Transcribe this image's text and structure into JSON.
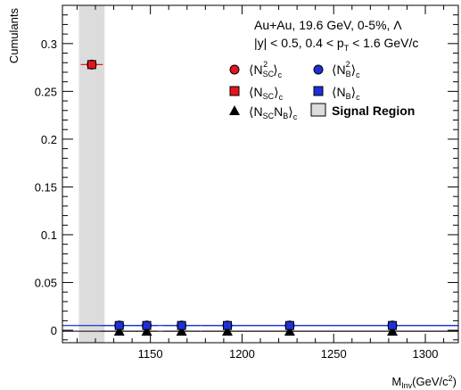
{
  "chart_data": {
    "type": "scatter",
    "ylabel": "Cumulants",
    "xlabel_main": "M",
    "xlabel_sub": "Inv",
    "xlabel_unit": "(GeV/c",
    "xlabel_unit_sup": "2",
    "xlabel_unit_end": ")",
    "xlim": [
      1102,
      1318
    ],
    "ylim": [
      -0.013,
      0.34
    ],
    "xticks": [
      1150,
      1200,
      1250,
      1300
    ],
    "xtick_labels": [
      "1150",
      "1200",
      "1250",
      "1300"
    ],
    "yticks": [
      0,
      0.05,
      0.1,
      0.15,
      0.2,
      0.25,
      0.3
    ],
    "ytick_labels": [
      "0",
      "0.05",
      "0.1",
      "0.15",
      "0.2",
      "0.25",
      "0.3"
    ],
    "annotations": {
      "line1": "Au+Au, 19.6 GeV, 0-5%, Λ",
      "line2_pre": "|y| < 0.5, 0.4 < p",
      "line2_sub": "T",
      "line2_post": " < 1.6 GeV/c"
    },
    "signal_region": {
      "x": [
        1111,
        1125
      ],
      "label": "Signal Region",
      "color": "#dcdcdc"
    },
    "series": [
      {
        "name": "⟨N²SC⟩c",
        "marker": "circle",
        "color": "#e8141c",
        "x": [
          1118
        ],
        "y": [
          0.278
        ],
        "xerr": [
          6
        ]
      },
      {
        "name": "⟨NSC⟩c",
        "marker": "square",
        "color": "#e8141c",
        "x": [
          1118
        ],
        "y": [
          0.278
        ],
        "xerr": [
          6
        ]
      },
      {
        "name": "⟨N²B⟩c",
        "marker": "circle",
        "color": "#1f2fd8",
        "x": [
          1133,
          1148,
          1167,
          1192,
          1226,
          1282
        ],
        "y": [
          0.005,
          0.005,
          0.005,
          0.005,
          0.005,
          0.005
        ],
        "xerr": [
          10,
          6,
          10,
          14,
          20,
          36
        ]
      },
      {
        "name": "⟨NB⟩c",
        "marker": "square",
        "color": "#1f2fd8",
        "x": [
          1133,
          1148,
          1167,
          1192,
          1226,
          1282
        ],
        "y": [
          0.005,
          0.005,
          0.005,
          0.005,
          0.005,
          0.005
        ],
        "xerr": [
          10,
          6,
          10,
          14,
          20,
          36
        ]
      },
      {
        "name": "⟨NSC NB⟩c",
        "marker": "triangle",
        "color": "#000000",
        "x": [
          1133,
          1148,
          1167,
          1192,
          1226,
          1282
        ],
        "y": [
          -0.001,
          -0.001,
          -0.001,
          -0.001,
          -0.001,
          -0.001
        ],
        "xerr": [
          10,
          6,
          10,
          14,
          20,
          36
        ]
      }
    ],
    "legend": {
      "n2sc_main": "⟨N",
      "n2sc_sub": "SC",
      "n2sc_sup": "2",
      "n2sc_end": "⟩",
      "n2sc_c": "c",
      "n2b_main": "⟨N",
      "n2b_sub": "B",
      "n2b_sup": "2",
      "n2b_end": "⟩",
      "n2b_c": "c",
      "nsc_main": "⟨N",
      "nsc_sub": "SC",
      "nsc_end": "⟩",
      "nsc_c": "c",
      "nb_main": "⟨N",
      "nb_sub": "B",
      "nb_end": "⟩",
      "nb_c": "c",
      "mix_main": "⟨N",
      "mix_sub1": "SC",
      "mix_mid": "N",
      "mix_sub2": "B",
      "mix_end": "⟩",
      "mix_c": "c",
      "signal": "Signal Region"
    },
    "grid": false,
    "legend_placement": "top-right"
  }
}
